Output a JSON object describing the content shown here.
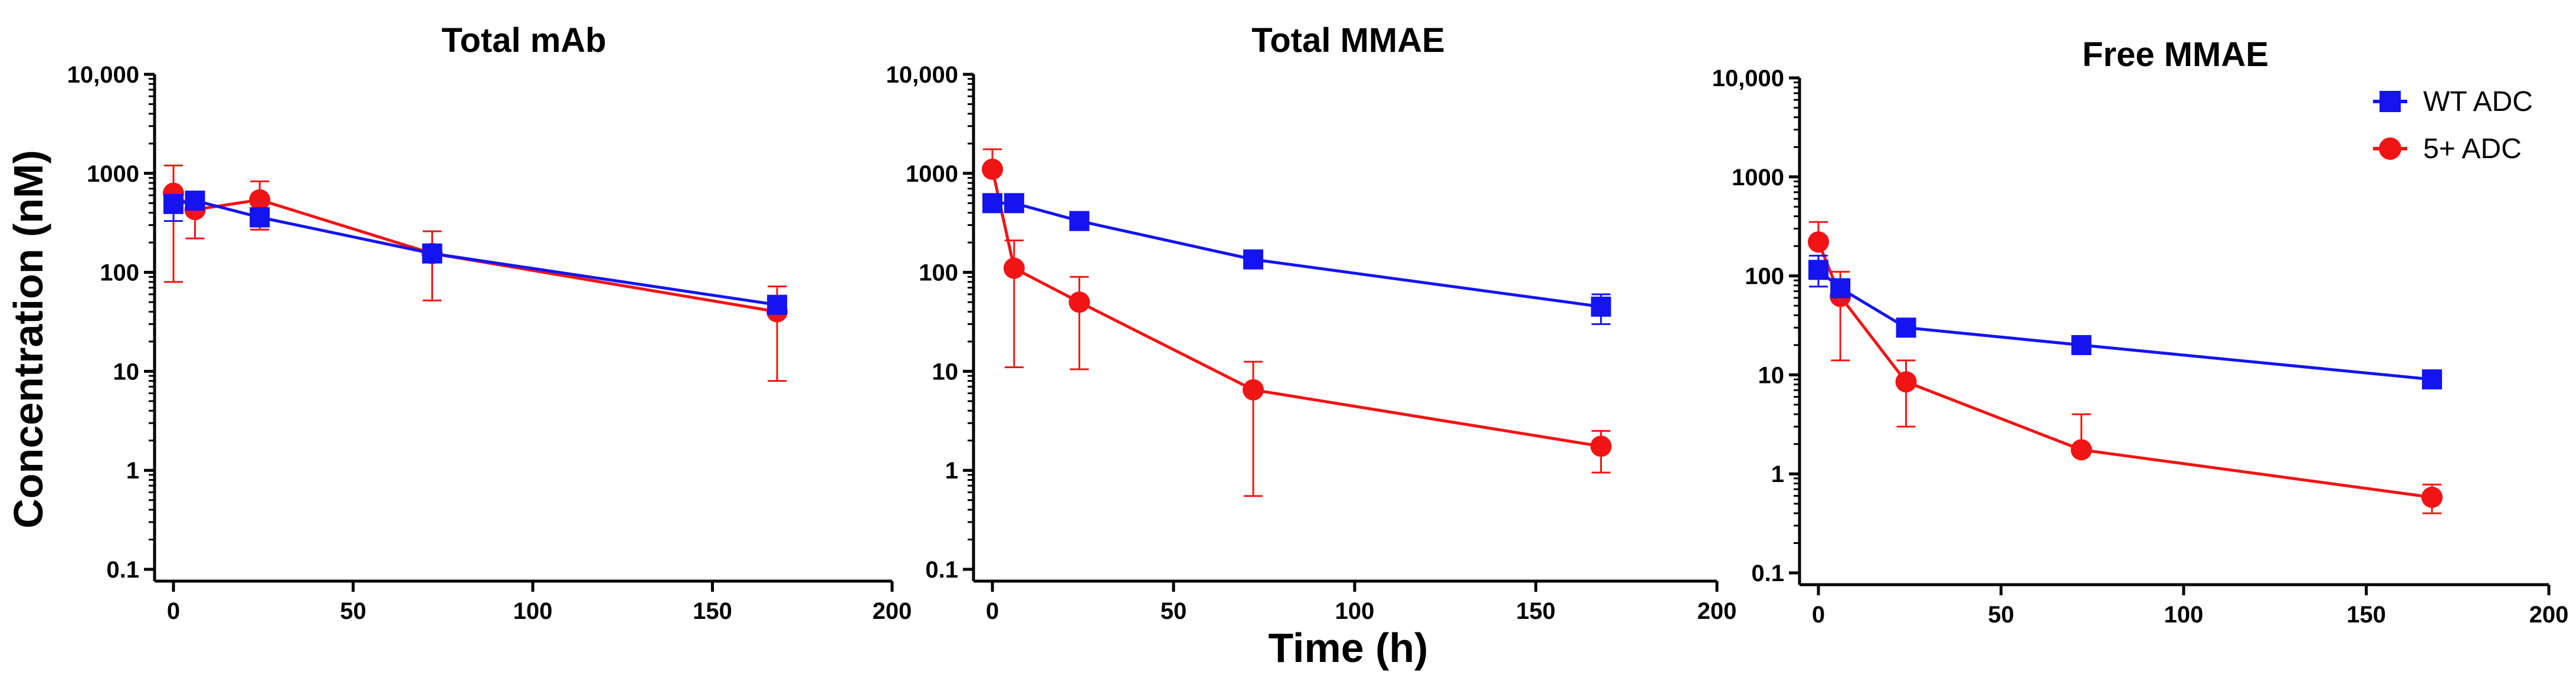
{
  "figure": {
    "ylabel": "Concentration (nM)",
    "xlabel": "Time (h)"
  },
  "legend": {
    "items": [
      {
        "label": "WT ADC",
        "color": "#1414f0",
        "marker": "square"
      },
      {
        "label": "5+ ADC",
        "color": "#f01414",
        "marker": "circle"
      }
    ]
  },
  "chart_data": [
    {
      "type": "line",
      "title": "Total mAb",
      "xlabel": "",
      "ylabel": "Concentration (nM)",
      "yscale": "log",
      "xlim": [
        0,
        200
      ],
      "ylim": [
        0.1,
        10000
      ],
      "x_ticks": [
        "0",
        "50",
        "100",
        "150",
        "200"
      ],
      "y_ticks": [
        "0.1",
        "1",
        "10",
        "100",
        "1000",
        "10,000"
      ],
      "series": [
        {
          "name": "WT ADC",
          "color": "#1414f0",
          "marker": "square",
          "x": [
            0,
            6,
            24,
            72,
            168
          ],
          "y": [
            490,
            530,
            360,
            155,
            47
          ],
          "err_low": [
            330,
            null,
            290,
            null,
            40
          ],
          "err_high": [
            null,
            null,
            null,
            null,
            null
          ]
        },
        {
          "name": "5+ ADC",
          "color": "#f01414",
          "marker": "circle",
          "x": [
            0,
            6,
            24,
            72,
            168
          ],
          "y": [
            630,
            430,
            540,
            155,
            40
          ],
          "err_low": [
            80,
            220,
            270,
            52,
            8
          ],
          "err_high": [
            1200,
            600,
            830,
            260,
            72
          ]
        }
      ]
    },
    {
      "type": "line",
      "title": "Total MMAE",
      "xlabel": "Time (h)",
      "ylabel": "",
      "yscale": "log",
      "xlim": [
        0,
        200
      ],
      "ylim": [
        0.1,
        10000
      ],
      "x_ticks": [
        "0",
        "50",
        "100",
        "150",
        "200"
      ],
      "y_ticks": [
        "0.1",
        "1",
        "10",
        "100",
        "1000",
        "10,000"
      ],
      "series": [
        {
          "name": "WT ADC",
          "color": "#1414f0",
          "marker": "square",
          "x": [
            0,
            6,
            24,
            72,
            168
          ],
          "y": [
            500,
            500,
            330,
            135,
            45
          ],
          "err_low": [
            null,
            null,
            null,
            null,
            30
          ],
          "err_high": [
            null,
            null,
            null,
            null,
            60
          ]
        },
        {
          "name": "5+ ADC",
          "color": "#f01414",
          "marker": "circle",
          "x": [
            0,
            6,
            24,
            72,
            168
          ],
          "y": [
            1100,
            110,
            50,
            6.5,
            1.75
          ],
          "err_low": [
            null,
            11,
            10.5,
            0.55,
            0.95
          ],
          "err_high": [
            1750,
            210,
            90,
            12.5,
            2.5
          ]
        }
      ]
    },
    {
      "type": "line",
      "title": "Free MMAE",
      "xlabel": "",
      "ylabel": "",
      "yscale": "log",
      "xlim": [
        0,
        200
      ],
      "ylim": [
        0.1,
        10000
      ],
      "x_ticks": [
        "0",
        "50",
        "100",
        "150",
        "200"
      ],
      "y_ticks": [
        "0.1",
        "1",
        "10",
        "100",
        "1000",
        "10,000"
      ],
      "series": [
        {
          "name": "WT ADC",
          "color": "#1414f0",
          "marker": "square",
          "x": [
            0,
            6,
            24,
            72,
            168
          ],
          "y": [
            115,
            75,
            30,
            20,
            9
          ],
          "err_low": [
            78,
            null,
            25,
            null,
            null
          ],
          "err_high": [
            160,
            null,
            36,
            null,
            null
          ]
        },
        {
          "name": "5+ ADC",
          "color": "#f01414",
          "marker": "circle",
          "x": [
            0,
            6,
            24,
            72,
            168
          ],
          "y": [
            220,
            62,
            8.5,
            1.75,
            0.58
          ],
          "err_low": [
            null,
            14,
            3,
            null,
            0.4
          ],
          "err_high": [
            350,
            110,
            14,
            4,
            0.78
          ]
        }
      ]
    }
  ]
}
